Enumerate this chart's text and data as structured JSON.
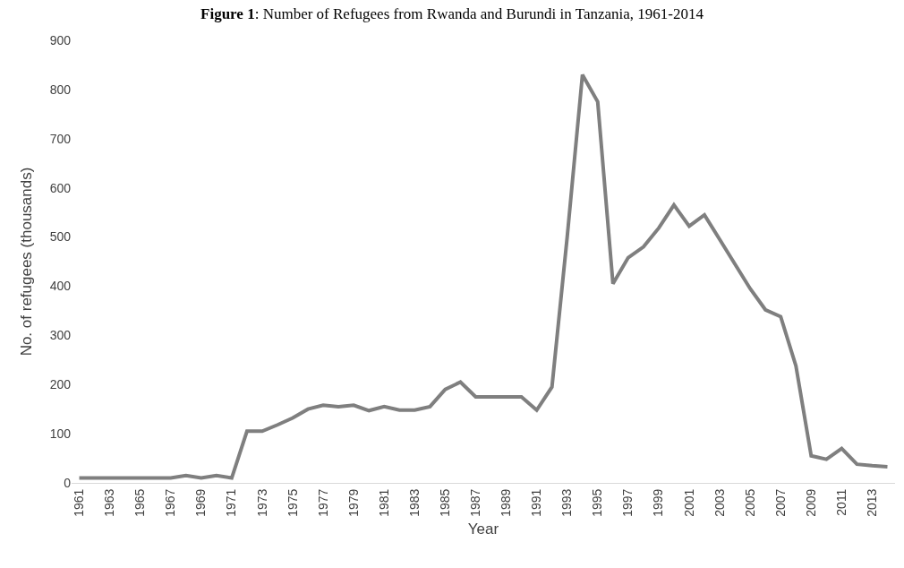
{
  "chart_data": {
    "type": "line",
    "title": "Figure 1: Number of Refugees from Rwanda and Burundi in Tanzania, 1961-2014",
    "xlabel": "Year",
    "ylabel": "No. of refugees (thousands)",
    "categories": [
      "1961",
      null,
      "1963",
      null,
      "1965",
      null,
      "1967",
      null,
      "1969",
      null,
      "1971",
      null,
      "1973",
      null,
      "1975",
      null,
      "1977",
      null,
      "1979",
      null,
      "1981",
      null,
      "1983",
      null,
      "1985",
      null,
      "1987",
      null,
      "1989",
      null,
      "1991",
      null,
      "1993",
      null,
      "1995",
      null,
      "1997",
      null,
      "1999",
      null,
      "2001",
      null,
      "2003",
      null,
      "2005",
      null,
      "2007",
      null,
      "2009",
      null,
      "2011",
      null,
      "2013",
      null
    ],
    "series": [
      {
        "color": "#7f7f7f",
        "values": [
          10,
          10,
          10,
          10,
          10,
          10,
          10,
          15,
          10,
          15,
          10,
          105,
          105,
          118,
          132,
          150,
          158,
          155,
          158,
          147,
          155,
          148,
          148,
          155,
          190,
          205,
          175,
          175,
          175,
          175,
          148,
          195,
          500,
          830,
          775,
          405,
          458,
          480,
          518,
          565,
          522,
          545,
          495,
          445,
          395,
          352,
          338,
          238,
          55,
          48,
          70,
          38,
          35,
          33
        ]
      }
    ],
    "ylim": [
      0,
      900
    ],
    "yticks": [
      0,
      100,
      200,
      300,
      400,
      500,
      600,
      700,
      800,
      900
    ],
    "grid": false,
    "marker": "none",
    "line_style": "solid"
  }
}
